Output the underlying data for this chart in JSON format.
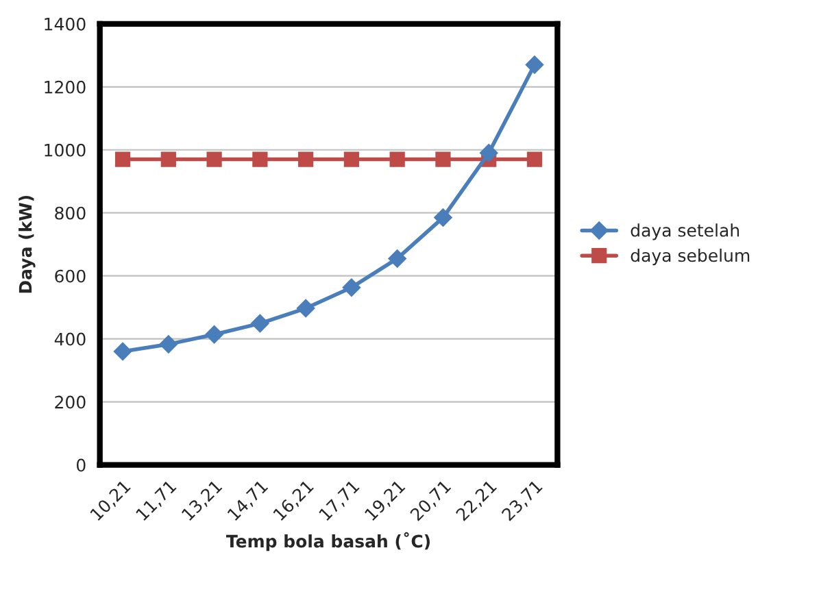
{
  "chart_data": {
    "type": "line",
    "xlabel": "Temp bola basah (˚C)",
    "ylabel": "Daya (kW)",
    "categories": [
      "10,21",
      "11,71",
      "13,21",
      "14,71",
      "16,21",
      "17,71",
      "19,21",
      "20,71",
      "22,21",
      "23,71"
    ],
    "series": [
      {
        "name": "daya setelah",
        "color": "#4a7ebb",
        "marker": "diamond",
        "values": [
          360,
          383,
          414,
          449,
          497,
          563,
          655,
          785,
          990,
          1270
        ]
      },
      {
        "name": "daya sebelum",
        "color": "#be4b48",
        "marker": "square",
        "values": [
          970,
          970,
          970,
          970,
          970,
          970,
          970,
          970,
          970,
          970
        ]
      }
    ],
    "ylim": [
      0,
      1400
    ],
    "yticks": [
      0,
      200,
      400,
      600,
      800,
      1000,
      1200,
      1400
    ],
    "grid": "y",
    "legend": "right"
  }
}
